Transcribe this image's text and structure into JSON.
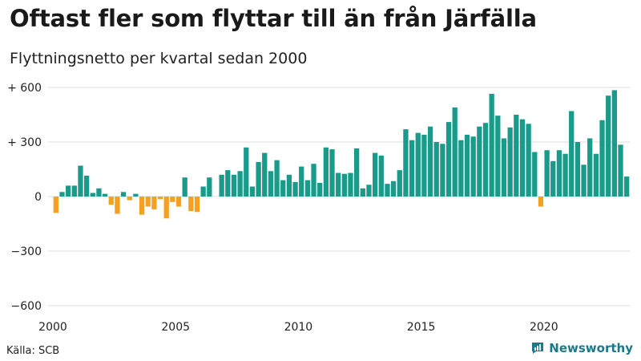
{
  "title": "Oftast fler som flyttar till än från Järfälla",
  "subtitle": "Flyttningsnetto per kvartal sedan 2000",
  "source": "Källa: SCB",
  "brand": "Newsworthy",
  "colors": {
    "positive": "#1a9a8a",
    "negative": "#f5a01e",
    "grid": "#dddddd",
    "brand": "#1a7a86"
  },
  "chart_data": {
    "type": "bar",
    "start": "2000 Q1",
    "frequency": "quarter",
    "ylim": [
      -650,
      650
    ],
    "yticks": [
      600,
      300,
      0,
      -300,
      -600
    ],
    "ytick_labels": [
      "+ 600",
      "+ 300",
      "0",
      "−300",
      "−600"
    ],
    "xticks": [
      "2000",
      "2005",
      "2010",
      "2015",
      "2020"
    ],
    "grid": true,
    "values": [
      -90,
      25,
      60,
      60,
      170,
      115,
      20,
      45,
      15,
      -45,
      -95,
      25,
      -20,
      15,
      -100,
      -55,
      -70,
      -15,
      -120,
      -30,
      -55,
      105,
      -80,
      -85,
      55,
      105,
      0,
      120,
      145,
      120,
      140,
      270,
      55,
      190,
      240,
      140,
      200,
      90,
      120,
      80,
      165,
      90,
      180,
      75,
      270,
      260,
      130,
      125,
      130,
      265,
      45,
      65,
      240,
      225,
      70,
      85,
      145,
      370,
      310,
      350,
      340,
      385,
      300,
      290,
      410,
      490,
      310,
      340,
      330,
      385,
      405,
      565,
      445,
      320,
      380,
      450,
      425,
      400,
      245,
      -55,
      255,
      195,
      255,
      235,
      470,
      300,
      175,
      320,
      235,
      420,
      555,
      585,
      285,
      110
    ]
  }
}
